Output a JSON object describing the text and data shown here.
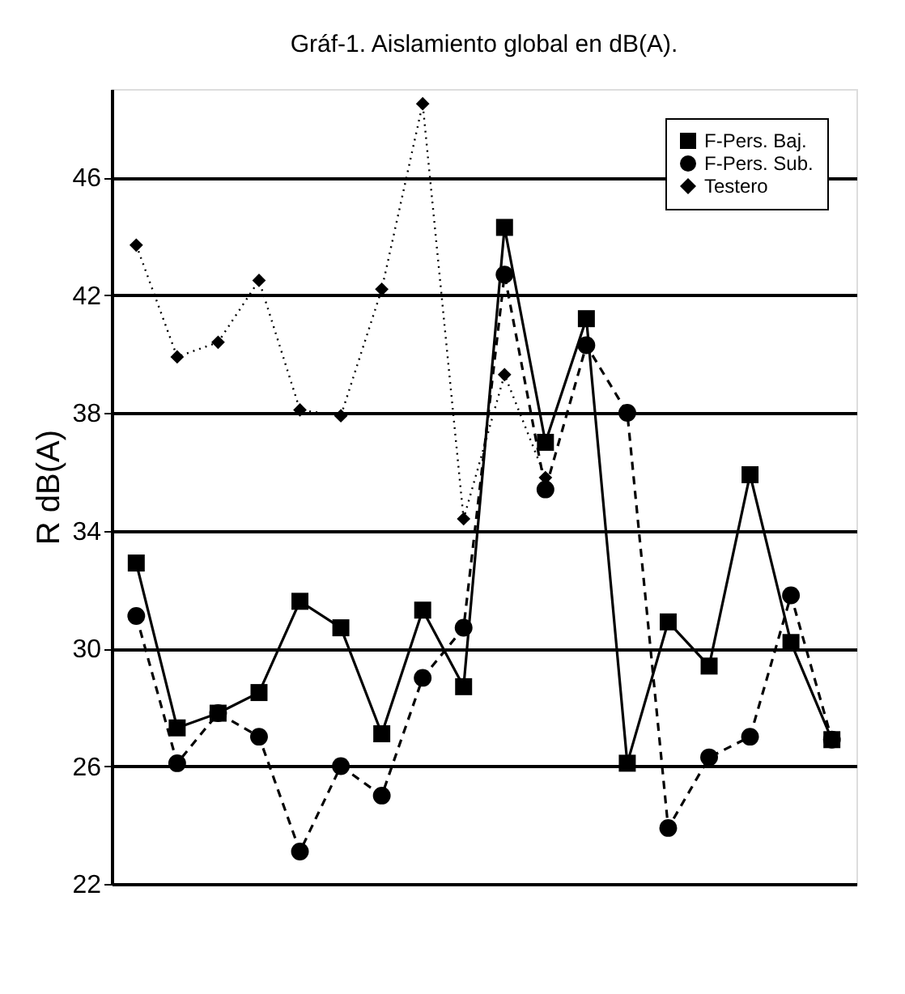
{
  "chart_data": {
    "type": "line",
    "title": "Gráf-1. Aislamiento global en dB(A).",
    "ylabel": "R dB(A)",
    "categories": [
      null,
      null,
      null,
      null,
      null,
      null,
      null,
      null,
      null,
      null,
      null,
      null,
      null,
      null,
      null,
      null,
      null,
      null
    ],
    "series": [
      {
        "name": "F-Pers. Baj.",
        "color": "#000000",
        "marker": "square",
        "line_style": "solid",
        "values": [
          32.9,
          27.3,
          27.8,
          28.5,
          31.6,
          30.7,
          27.1,
          31.3,
          28.7,
          44.3,
          37.0,
          41.2,
          26.1,
          30.9,
          29.4,
          35.9,
          30.2,
          26.9
        ]
      },
      {
        "name": "F-Pers. Sub.",
        "color": "#000000",
        "marker": "circle",
        "line_style": "dashed",
        "values": [
          31.1,
          26.1,
          27.8,
          27.0,
          23.1,
          26.0,
          25.0,
          29.0,
          30.7,
          42.7,
          35.4,
          40.3,
          38.0,
          23.9,
          26.3,
          27.0,
          31.8,
          26.9
        ]
      },
      {
        "name": "Testero",
        "color": "#000000",
        "marker": "diamond",
        "line_style": "dotted",
        "values": [
          43.7,
          39.9,
          40.4,
          42.5,
          38.1,
          37.9,
          42.2,
          48.5,
          34.4,
          39.3,
          35.8,
          null,
          null,
          null,
          null,
          null,
          null,
          null
        ]
      }
    ],
    "ylim": [
      22,
      49
    ],
    "yticks": [
      22,
      26,
      30,
      34,
      38,
      42,
      46
    ],
    "grid": "y",
    "legend": "top right",
    "tick_labels": "y"
  }
}
